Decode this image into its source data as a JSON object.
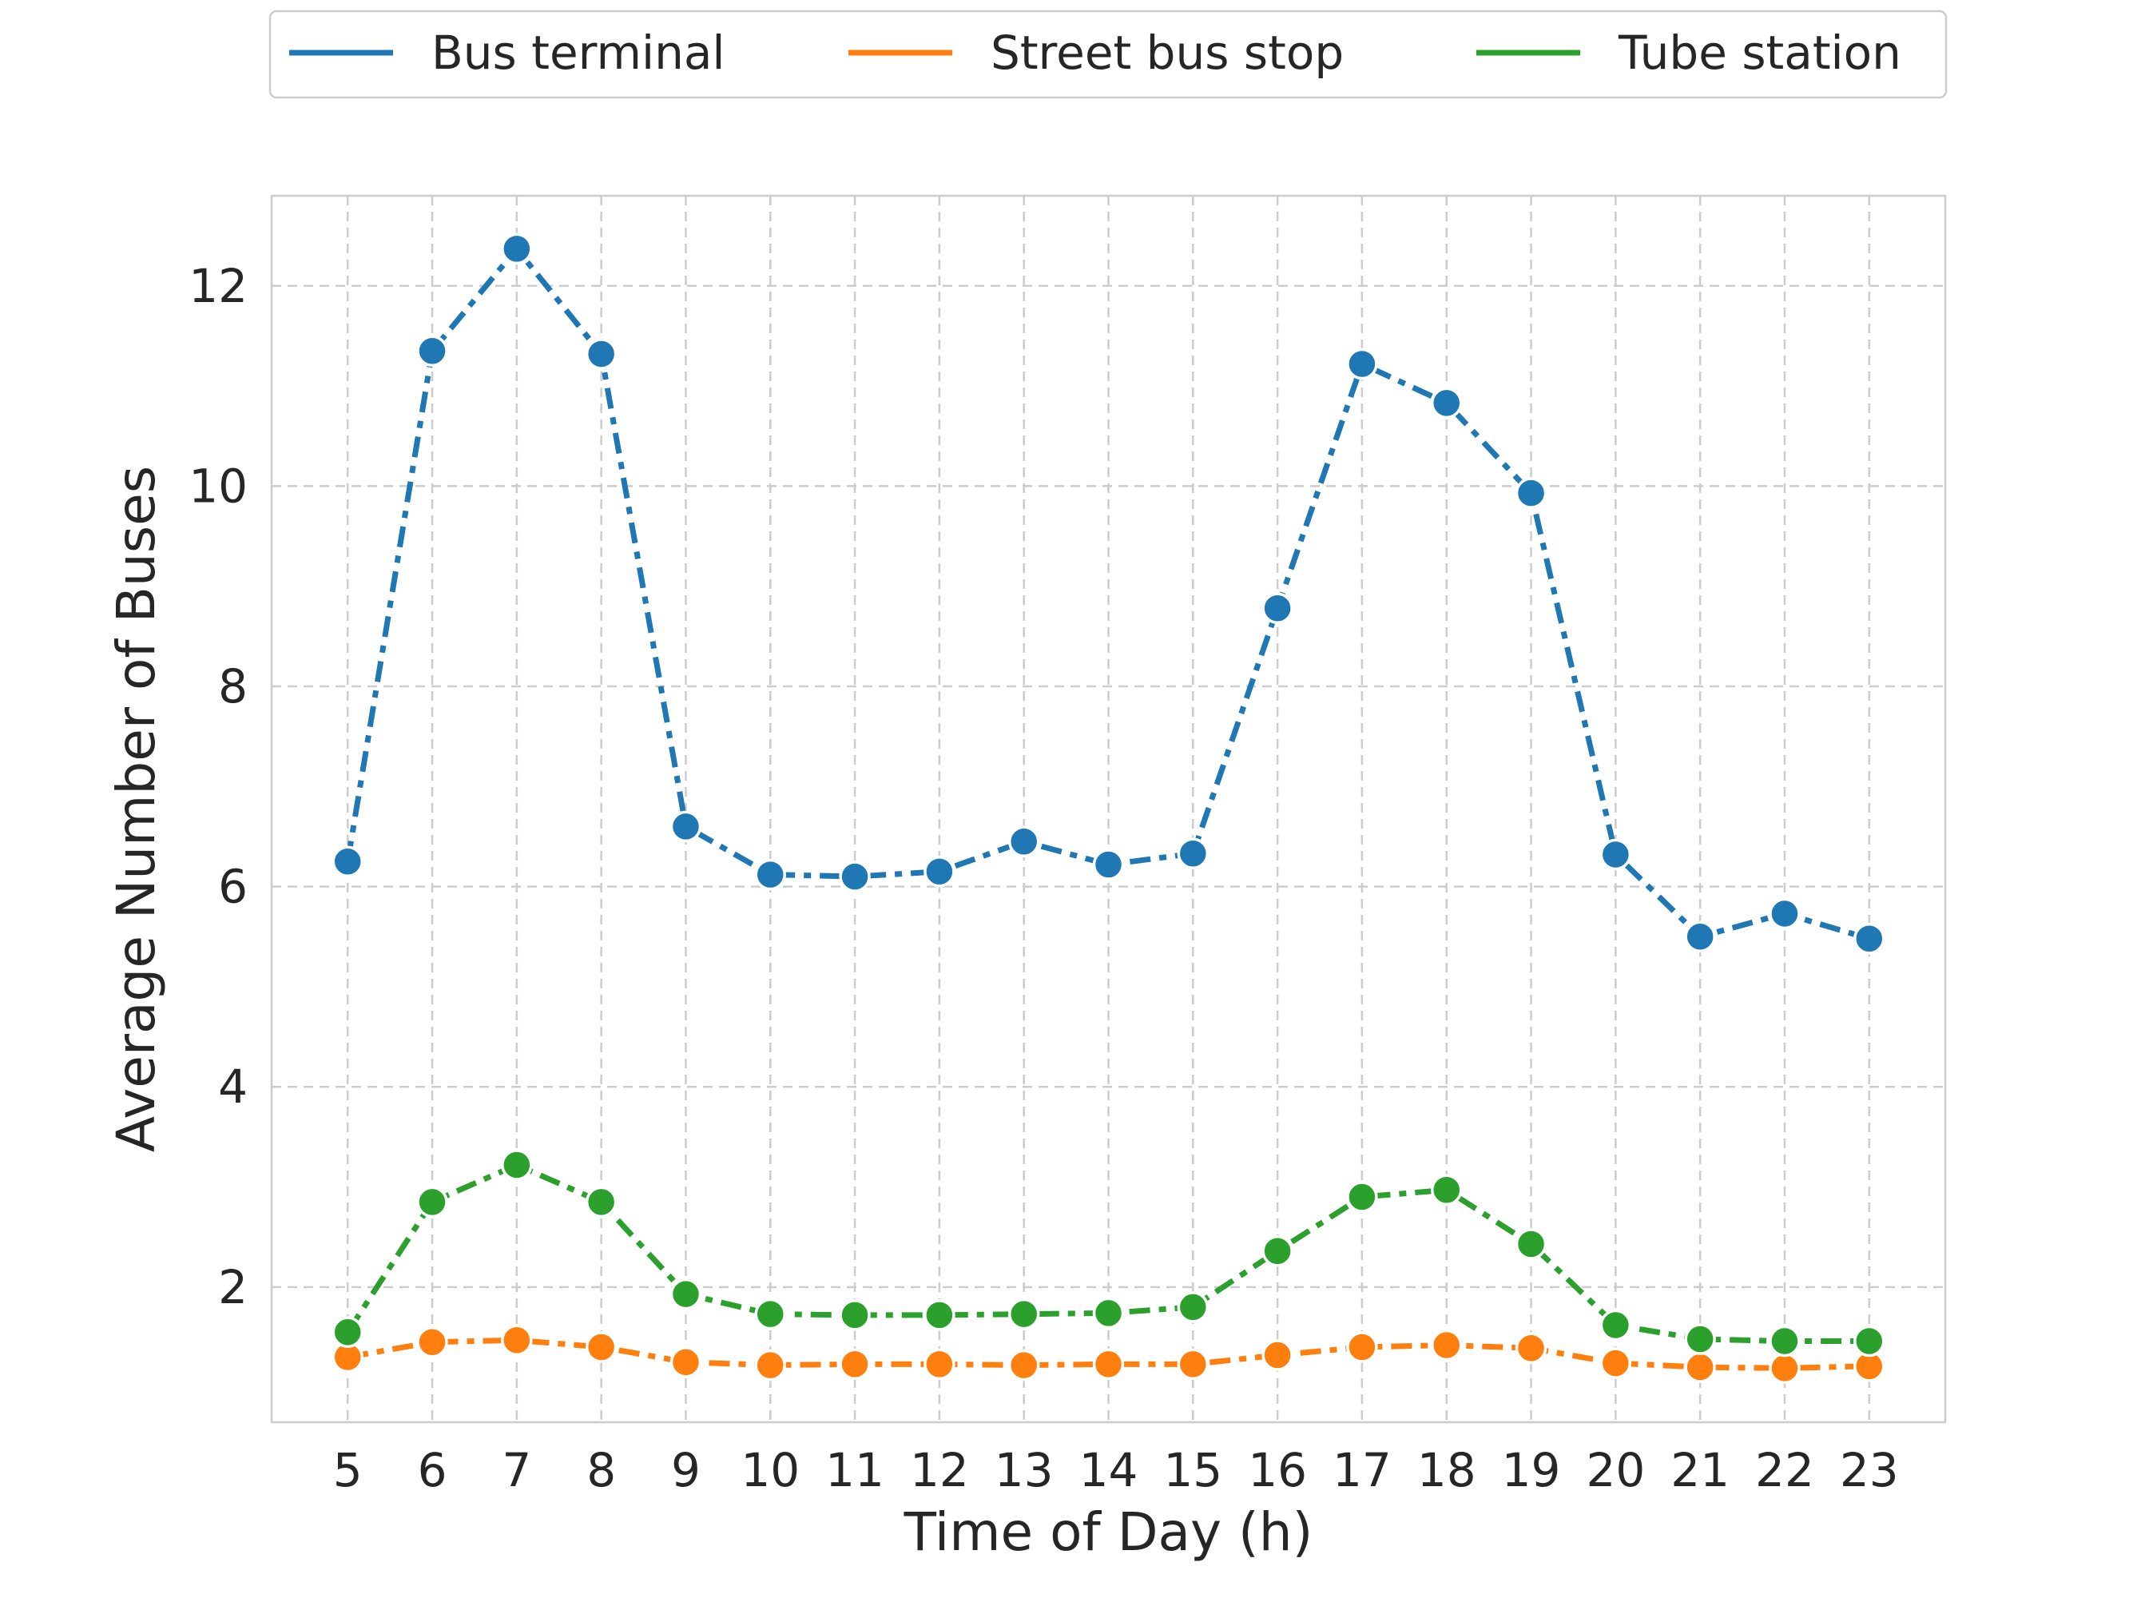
{
  "chart_data": {
    "type": "line",
    "title": "",
    "xlabel": "Time of Day (h)",
    "ylabel": "Average Number of Buses",
    "x": [
      5,
      6,
      7,
      8,
      9,
      10,
      11,
      12,
      13,
      14,
      15,
      16,
      17,
      18,
      19,
      20,
      21,
      22,
      23
    ],
    "xticks": [
      "5",
      "6",
      "7",
      "8",
      "9",
      "10",
      "11",
      "12",
      "13",
      "14",
      "15",
      "16",
      "17",
      "18",
      "19",
      "20",
      "21",
      "22",
      "23"
    ],
    "yticks": [
      "2",
      "4",
      "6",
      "8",
      "10",
      "12"
    ],
    "xlim": [
      4.1,
      23.9
    ],
    "ylim": [
      0.65,
      12.9
    ],
    "grid": true,
    "legend_position": "top-center",
    "line_style": "dash-dot",
    "markers": "circle",
    "series": [
      {
        "name": "Bus terminal",
        "color": "#1f77b4",
        "values": [
          6.25,
          11.35,
          12.37,
          11.32,
          6.6,
          6.12,
          6.1,
          6.15,
          6.45,
          6.22,
          6.33,
          8.78,
          11.22,
          10.83,
          9.93,
          6.32,
          5.5,
          5.73,
          5.48
        ]
      },
      {
        "name": "Street bus stop",
        "color": "#ff7f0e",
        "values": [
          1.3,
          1.45,
          1.47,
          1.4,
          1.25,
          1.22,
          1.23,
          1.23,
          1.22,
          1.23,
          1.23,
          1.32,
          1.4,
          1.42,
          1.39,
          1.24,
          1.2,
          1.19,
          1.21
        ]
      },
      {
        "name": "Tube station",
        "color": "#2ca02c",
        "values": [
          1.55,
          2.85,
          3.22,
          2.85,
          1.93,
          1.73,
          1.72,
          1.72,
          1.73,
          1.74,
          1.8,
          2.36,
          2.9,
          2.97,
          2.43,
          1.62,
          1.48,
          1.46,
          1.46
        ]
      }
    ]
  }
}
